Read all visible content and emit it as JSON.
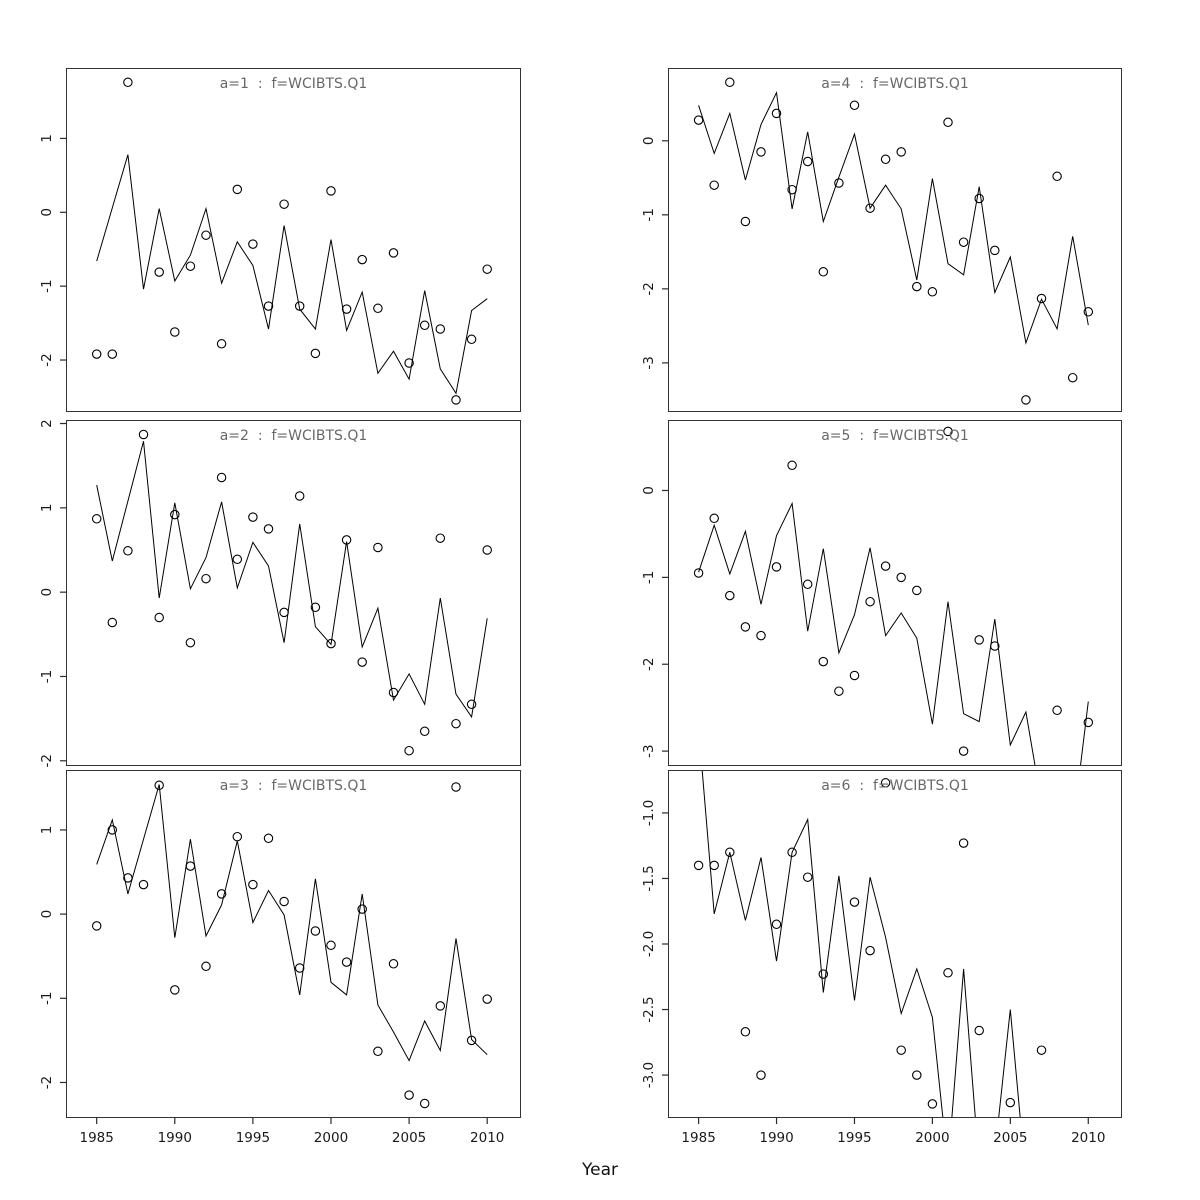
{
  "figure": {
    "xlabel": "Year",
    "background": "#ffffff",
    "axis_color": "#2b2b2b",
    "line_color": "#000000",
    "point_color": "#000000",
    "title_color": "#686868"
  },
  "chart_data": {
    "type": "line",
    "subtype": "small-multiples line + scatter (6 panels, 2 cols x 3 rows)",
    "xlabel": "Year",
    "x": [
      1985,
      1986,
      1987,
      1988,
      1989,
      1990,
      1991,
      1992,
      1993,
      1994,
      1995,
      1996,
      1997,
      1998,
      1999,
      2000,
      2001,
      2002,
      2003,
      2004,
      2005,
      2006,
      2007,
      2008,
      2009,
      2010
    ],
    "xlim": [
      1983.1,
      2012.1
    ],
    "x_ticks": {
      "values": [
        1985,
        1990,
        1995,
        2000,
        2005,
        2010
      ],
      "labels": [
        "1985",
        "1990",
        "1995",
        "2000",
        "2005",
        "2010"
      ]
    },
    "legend": [
      "model line",
      "observed points (open circles)"
    ],
    "grid": "off",
    "panels": [
      {
        "title": "a=1  :  f=WCIBTS.Q1",
        "row": 1,
        "col": 1,
        "ylim": [
          -2.69,
          1.94
        ],
        "ytick_values": [
          1,
          0,
          -1,
          -2
        ],
        "ytick_labels": [
          "1",
          "0",
          "-1",
          "-2"
        ],
        "show_x_axis": false,
        "line": [
          -0.66,
          0.06,
          0.78,
          -1.04,
          0.05,
          -0.93,
          -0.58,
          0.05,
          -0.96,
          -0.4,
          -0.72,
          -1.58,
          -0.18,
          -1.31,
          -1.58,
          -0.37,
          -1.6,
          -1.08,
          -2.18,
          -1.88,
          -2.26,
          -1.06,
          -2.12,
          -2.45,
          -1.33,
          -1.17
        ],
        "points": [
          -1.92,
          -1.92,
          1.76,
          null,
          -0.81,
          -1.62,
          -0.73,
          -0.31,
          -1.78,
          0.31,
          -0.43,
          -1.27,
          0.11,
          -1.27,
          -1.91,
          0.29,
          -1.31,
          -0.64,
          -1.3,
          -0.55,
          -2.04,
          -1.53,
          -1.58,
          -2.54,
          -1.72,
          -0.77
        ]
      },
      {
        "title": "a=4  :  f=WCIBTS.Q1",
        "row": 1,
        "col": 2,
        "ylim": [
          -3.65,
          0.97
        ],
        "ytick_values": [
          0,
          -1,
          -2,
          -3
        ],
        "ytick_labels": [
          "0",
          "-1",
          "-2",
          "-3"
        ],
        "show_x_axis": false,
        "line": [
          0.48,
          -0.17,
          0.37,
          -0.53,
          0.22,
          0.65,
          -0.92,
          0.12,
          -1.09,
          -0.49,
          0.09,
          -0.91,
          -0.6,
          -0.92,
          -1.88,
          -0.51,
          -1.66,
          -1.81,
          -0.62,
          -2.05,
          -1.57,
          -2.73,
          -2.14,
          -2.54,
          -1.29,
          -2.49
        ],
        "points": [
          0.28,
          -0.6,
          0.79,
          -1.09,
          -0.15,
          0.37,
          -0.66,
          -0.28,
          -1.77,
          -0.57,
          0.48,
          -0.91,
          -0.25,
          -0.15,
          -1.97,
          -2.04,
          0.25,
          -1.37,
          -0.78,
          -1.48,
          null,
          -3.5,
          -2.13,
          -0.48,
          -3.2,
          -2.31
        ]
      },
      {
        "title": "a=2  :  f=WCIBTS.Q1",
        "row": 2,
        "col": 1,
        "ylim": [
          -2.05,
          2.03
        ],
        "ytick_values": [
          2,
          1,
          0,
          -1,
          -2
        ],
        "ytick_labels": [
          "2",
          "1",
          "0",
          "-1",
          "-2"
        ],
        "show_x_axis": false,
        "line": [
          1.27,
          0.37,
          1.08,
          1.79,
          -0.07,
          1.06,
          0.04,
          0.41,
          1.07,
          0.05,
          0.59,
          0.31,
          -0.6,
          0.81,
          -0.41,
          -0.62,
          0.6,
          -0.65,
          -0.19,
          -1.28,
          -0.97,
          -1.33,
          -0.07,
          -1.21,
          -1.48,
          -0.31
        ],
        "points": [
          0.87,
          -0.36,
          0.49,
          1.87,
          -0.3,
          0.92,
          -0.6,
          0.16,
          1.36,
          0.39,
          0.89,
          0.75,
          -0.24,
          1.14,
          -0.18,
          -0.61,
          0.62,
          -0.83,
          0.53,
          -1.19,
          -1.88,
          -1.65,
          0.64,
          -1.56,
          -1.33,
          0.5
        ]
      },
      {
        "title": "a=5  :  f=WCIBTS.Q1",
        "row": 2,
        "col": 2,
        "ylim": [
          -3.16,
          0.8
        ],
        "ytick_values": [
          0,
          -1,
          -2,
          -3
        ],
        "ytick_labels": [
          "0",
          "-1",
          "-2",
          "-3"
        ],
        "show_x_axis": false,
        "line": [
          -0.94,
          -0.4,
          -0.96,
          -0.47,
          -1.31,
          -0.52,
          -0.15,
          -1.62,
          -0.67,
          -1.87,
          -1.43,
          -0.66,
          -1.67,
          -1.41,
          -1.7,
          -2.69,
          -1.28,
          -2.57,
          -2.66,
          -1.48,
          -2.93,
          -2.55,
          -3.6,
          -3.4,
          -3.9,
          -2.43
        ],
        "points": [
          -0.95,
          -0.32,
          -1.21,
          -1.57,
          -1.67,
          -0.88,
          0.29,
          -1.08,
          -1.97,
          -2.31,
          -2.13,
          -1.28,
          -0.87,
          -1.0,
          -1.15,
          null,
          0.68,
          -3.0,
          -1.72,
          -1.79,
          null,
          null,
          null,
          -2.53,
          null,
          -2.67
        ]
      },
      {
        "title": "a=3  :  f=WCIBTS.Q1",
        "row": 3,
        "col": 1,
        "ylim": [
          -2.41,
          1.7
        ],
        "ytick_values": [
          1,
          0,
          -1,
          -2
        ],
        "ytick_labels": [
          "1",
          "0",
          "-1",
          "-2"
        ],
        "show_x_axis": true,
        "line": [
          0.59,
          1.12,
          0.24,
          0.89,
          1.54,
          -0.28,
          0.89,
          -0.26,
          0.11,
          0.87,
          -0.1,
          0.28,
          -0.01,
          -0.96,
          0.42,
          -0.81,
          -0.96,
          0.24,
          -1.08,
          -1.4,
          -1.74,
          -1.27,
          -1.62,
          -0.29,
          -1.49,
          -1.67
        ],
        "points": [
          -0.14,
          1.0,
          0.43,
          0.35,
          1.53,
          -0.9,
          0.57,
          -0.62,
          0.24,
          0.92,
          0.35,
          0.9,
          0.15,
          -0.64,
          -0.2,
          -0.37,
          -0.57,
          0.06,
          -1.63,
          -0.59,
          -2.15,
          -2.25,
          -1.09,
          1.51,
          -1.5,
          -1.01
        ]
      },
      {
        "title": "a=6  :  f=WCIBTS.Q1",
        "row": 3,
        "col": 2,
        "ylim": [
          -3.32,
          -0.68
        ],
        "ytick_values": [
          -1.0,
          -1.5,
          -2.0,
          -2.5,
          -3.0
        ],
        "ytick_labels": [
          "-1.0",
          "-1.5",
          "-2.0",
          "-2.5",
          "-3.0"
        ],
        "show_x_axis": true,
        "line": [
          -0.35,
          -1.77,
          -1.3,
          -1.82,
          -1.34,
          -2.13,
          -1.3,
          -1.05,
          -2.37,
          -1.48,
          -2.43,
          -1.49,
          -1.95,
          -2.53,
          -2.19,
          -2.56,
          -3.7,
          -2.19,
          -3.7,
          -3.6,
          -2.5,
          -3.8,
          -4.0,
          -4.0,
          -4.0,
          -4.0
        ],
        "points": [
          -1.4,
          -1.4,
          -1.3,
          -2.67,
          -3.0,
          -1.85,
          -1.3,
          -1.49,
          -2.23,
          null,
          -1.68,
          -2.05,
          -0.77,
          -2.81,
          -3.0,
          -3.22,
          -2.22,
          -1.23,
          -2.66,
          null,
          -3.21,
          null,
          -2.81,
          null,
          null,
          null
        ]
      }
    ]
  }
}
